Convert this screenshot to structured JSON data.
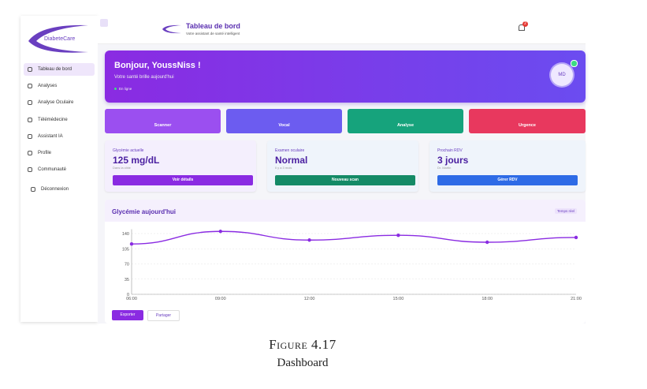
{
  "sidebar": {
    "logo": "DiabeteCare",
    "menu": [
      "Tableau de bord",
      "Analyses",
      "Analyse Oculaire",
      "Télémédecine",
      "Assistant IA",
      "Profile",
      "Communauté",
      "Déconnexion"
    ]
  },
  "header": {
    "title": "Tableau de bord",
    "subtitle": "Votre assistant de santé intelligent",
    "notifications": "2"
  },
  "hero": {
    "greeting": "Bonjour, YoussNiss !",
    "message": "Votre santé brille aujourd'hui",
    "status": "En ligne",
    "avatar": "MD"
  },
  "actions": [
    "Scanner",
    "Vocal",
    "Analyse",
    "Urgence"
  ],
  "cards": [
    {
      "label": "Glycémie actuelle",
      "value": "125 mg/dL",
      "note": "Dans la cible",
      "button": "Voir détails"
    },
    {
      "label": "Examen oculaire",
      "value": "Normal",
      "note": "Il y a 3 mois",
      "button": "Nouveau scan"
    },
    {
      "label": "Prochain RDV",
      "value": "3 jours",
      "note": "Dr. Martin",
      "button": "Gérer RDV"
    }
  ],
  "chart_data": {
    "type": "line",
    "title": "Glycémie aujourd'hui",
    "badge": "Temps réel",
    "categories": [
      "06:00",
      "09:00",
      "12:00",
      "15:00",
      "18:00",
      "21:00"
    ],
    "series": [
      {
        "name": "Glycémie",
        "color": "#8a2be2",
        "values": [
          116,
          145,
          125,
          136,
          120,
          131
        ]
      }
    ],
    "ylim": [
      0,
      150
    ],
    "yticks": [
      0,
      35,
      70,
      105,
      140
    ],
    "grid": true
  },
  "chart_buttons": [
    "Exporter",
    "Partager"
  ],
  "caption": {
    "figure": "Figure 4.17",
    "label": "Dashboard"
  }
}
